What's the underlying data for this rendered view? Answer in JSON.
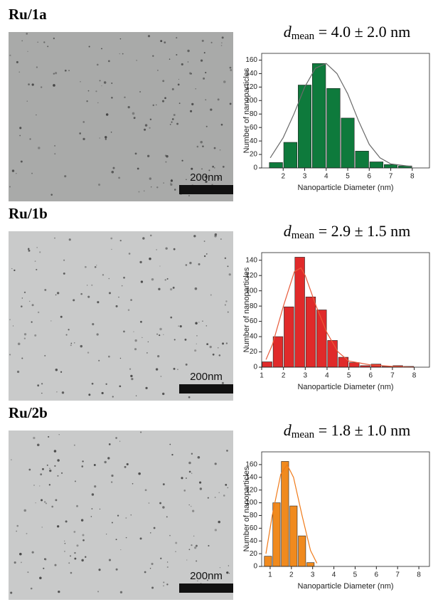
{
  "panels": [
    {
      "label": "Ru/1a",
      "scale_bar": "200nm"
    },
    {
      "label": "Ru/1b",
      "scale_bar": "200nm"
    },
    {
      "label": "Ru/2b",
      "scale_bar": "200nm"
    }
  ],
  "chart_data": [
    {
      "type": "histogram",
      "title": {
        "symbol": "d",
        "subscript": "mean",
        "text": " = 4.0 ± 2.0 nm"
      },
      "x_label": "Nanoparticle Diameter (nm)",
      "y_label": "Number of nanoparticles",
      "color": "#0e7a3c",
      "bins": [
        1.33,
        2,
        2.67,
        3.33,
        4,
        4.67,
        5.33,
        6,
        6.67,
        7.33,
        8
      ],
      "values": [
        8,
        38,
        123,
        155,
        118,
        74,
        25,
        9,
        5,
        3
      ],
      "fit": {
        "color": "#6a6a6a",
        "x": [
          1.4,
          2,
          2.5,
          3,
          3.5,
          4,
          4.5,
          5,
          5.5,
          6,
          6.5,
          7,
          8
        ],
        "values": [
          15,
          45,
          80,
          120,
          148,
          155,
          140,
          110,
          70,
          35,
          15,
          6,
          2
        ]
      },
      "xlim": [
        1,
        8.8
      ],
      "xticks": [
        2,
        3,
        4,
        5,
        6,
        7,
        8
      ],
      "ylim": [
        0,
        170
      ],
      "yticks": [
        0,
        20,
        40,
        60,
        80,
        100,
        120,
        140,
        160
      ]
    },
    {
      "type": "histogram",
      "title": {
        "symbol": "d",
        "subscript": "mean",
        "text": " = 2.9 ± 1.5 nm"
      },
      "x_label": "Nanoparticle Diameter (nm)",
      "y_label": "Number of nanoparticles",
      "color": "#e02a2a",
      "bins": [
        1,
        1.5,
        2,
        2.5,
        3,
        3.5,
        4,
        4.5,
        5,
        5.5,
        6,
        6.5,
        7,
        7.5,
        8
      ],
      "values": [
        7,
        40,
        79,
        144,
        92,
        75,
        35,
        13,
        6,
        2,
        4,
        1,
        2,
        1
      ],
      "fit": {
        "color": "#e85a3a",
        "x": [
          1.2,
          1.5,
          2,
          2.5,
          2.8,
          3,
          3.5,
          4,
          4.5,
          5,
          6,
          7,
          8
        ],
        "values": [
          10,
          30,
          80,
          125,
          130,
          120,
          80,
          45,
          20,
          8,
          3,
          1,
          0
        ]
      },
      "xlim": [
        1,
        8.7
      ],
      "xticks": [
        1,
        2,
        3,
        4,
        5,
        6,
        7,
        8
      ],
      "ylim": [
        0,
        150
      ],
      "yticks": [
        0,
        20,
        40,
        60,
        80,
        100,
        120,
        140
      ]
    },
    {
      "type": "histogram",
      "title": {
        "symbol": "d",
        "subscript": "mean",
        "text": " = 1.8 ± 1.0 nm"
      },
      "x_label": "Nanoparticle Diameter (nm)",
      "y_label": "Number of nanoparticles",
      "color": "#f08a1e",
      "bins": [
        0.7,
        1.1,
        1.5,
        1.9,
        2.3,
        2.7,
        3.1
      ],
      "values": [
        16,
        100,
        165,
        95,
        48,
        6
      ],
      "fit": {
        "color": "#f07a18",
        "x": [
          0.8,
          1.1,
          1.5,
          1.8,
          2.1,
          2.5,
          2.9,
          3.2
        ],
        "values": [
          20,
          80,
          145,
          160,
          140,
          80,
          25,
          5
        ]
      },
      "xlim": [
        0.6,
        8.5
      ],
      "xticks": [
        1,
        2,
        3,
        4,
        5,
        6,
        7,
        8
      ],
      "ylim": [
        0,
        180
      ],
      "yticks": [
        0,
        20,
        40,
        60,
        80,
        100,
        120,
        140,
        160
      ]
    }
  ]
}
